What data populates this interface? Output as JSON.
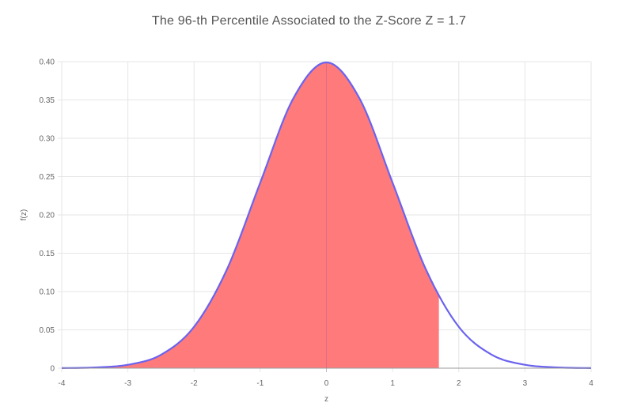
{
  "chart_data": {
    "type": "area",
    "title": "The 96-th Percentile Associated to the Z-Score Z = 1.7",
    "xlabel": "z",
    "ylabel": "f(z)",
    "xlim": [
      -4,
      4
    ],
    "ylim": [
      0,
      0.4
    ],
    "x_ticks": [
      "-4",
      "-3",
      "-2",
      "-1",
      "0",
      "1",
      "2",
      "3",
      "4"
    ],
    "y_ticks": [
      "0",
      "0.05",
      "0.10",
      "0.15",
      "0.20",
      "0.25",
      "0.30",
      "0.35",
      "0.40"
    ],
    "grid": true,
    "series": [
      {
        "kind": "line",
        "color": "#6b63ee",
        "x": [
          -4,
          -3.5,
          -3,
          -2.5,
          -2,
          -1.5,
          -1,
          -0.5,
          0,
          0.5,
          1,
          1.5,
          2,
          2.5,
          3,
          3.5,
          4
        ],
        "values": [
          0.0001,
          0.0009,
          0.0044,
          0.0175,
          0.054,
          0.1295,
          0.242,
          0.352,
          0.399,
          0.352,
          0.242,
          0.1295,
          0.054,
          0.0175,
          0.0044,
          0.0009,
          0.0001
        ]
      },
      {
        "kind": "shaded-area",
        "color": "#ff7b7b",
        "x_from": -4,
        "x_to": 1.7
      }
    ]
  }
}
